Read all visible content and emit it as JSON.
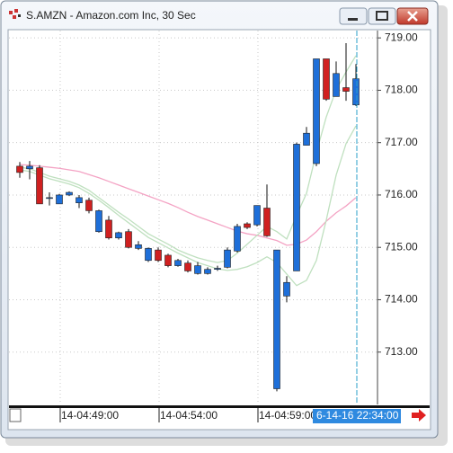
{
  "chart_data": {
    "type": "candlestick",
    "title": "S.AMZN - Amazon.com Inc, 30 Sec",
    "categories": [
      null,
      null,
      null,
      null,
      "14-04:49:00",
      null,
      null,
      null,
      null,
      null,
      null,
      null,
      null,
      null,
      "14-04:54:00",
      null,
      null,
      null,
      null,
      null,
      null,
      null,
      null,
      null,
      "14-04:59:00",
      null,
      null,
      null,
      null,
      null,
      null,
      null,
      null,
      null,
      null
    ],
    "open": [
      716.55,
      716.5,
      716.52,
      715.95,
      715.83,
      716.0,
      715.85,
      715.9,
      715.3,
      715.52,
      715.18,
      715.3,
      714.98,
      714.75,
      714.95,
      714.85,
      714.65,
      714.7,
      714.5,
      714.5,
      714.58,
      714.62,
      714.93,
      715.45,
      715.43,
      715.75,
      712.3,
      714.07,
      714.55,
      716.95,
      716.6,
      718.6,
      717.88,
      718.05,
      717.72
    ],
    "high": [
      716.63,
      716.65,
      716.57,
      716.05,
      716.02,
      716.07,
      716.0,
      715.95,
      715.72,
      715.6,
      715.3,
      715.35,
      715.12,
      715.0,
      715.0,
      714.88,
      714.78,
      714.75,
      714.72,
      714.62,
      714.65,
      715.0,
      715.45,
      715.48,
      715.8,
      716.2,
      714.95,
      714.45,
      717.0,
      717.3,
      718.6,
      718.6,
      718.55,
      718.9,
      718.5
    ],
    "low": [
      716.33,
      716.3,
      715.83,
      715.8,
      715.83,
      715.98,
      715.75,
      715.65,
      715.28,
      715.15,
      715.15,
      714.98,
      714.95,
      714.72,
      714.72,
      714.62,
      714.63,
      714.52,
      714.48,
      714.48,
      714.55,
      714.6,
      714.9,
      715.35,
      715.4,
      715.2,
      712.25,
      713.95,
      714.55,
      716.95,
      716.55,
      717.8,
      717.88,
      717.8,
      717.7
    ],
    "close": [
      716.43,
      716.55,
      715.83,
      715.95,
      716.0,
      716.05,
      715.95,
      715.7,
      715.7,
      715.18,
      715.28,
      715.0,
      715.05,
      714.98,
      714.75,
      714.65,
      714.75,
      714.55,
      714.65,
      714.58,
      714.6,
      714.95,
      715.4,
      715.38,
      715.8,
      715.22,
      714.95,
      714.33,
      716.97,
      717.18,
      718.6,
      717.83,
      718.32,
      717.98,
      718.22
    ],
    "up_color": "#1e6fd9",
    "down_color": "#d02020",
    "series": [
      {
        "color": "#f4a3c4",
        "values": [
          716.58,
          716.57,
          716.55,
          716.53,
          716.51,
          716.48,
          716.45,
          716.39,
          716.33,
          716.26,
          716.19,
          716.12,
          716.05,
          715.98,
          715.91,
          715.84,
          715.76,
          715.67,
          715.59,
          715.52,
          715.45,
          715.38,
          715.31,
          715.26,
          715.23,
          715.18,
          715.13,
          715.04,
          715.06,
          715.14,
          715.3,
          715.5,
          715.66,
          715.79,
          715.95
        ]
      },
      {
        "color": "#bfe0bf",
        "values": [
          716.53,
          716.5,
          716.43,
          716.36,
          716.31,
          716.26,
          716.19,
          716.09,
          715.95,
          715.81,
          715.67,
          715.54,
          715.4,
          715.26,
          715.16,
          715.06,
          714.95,
          714.87,
          714.8,
          714.75,
          714.71,
          714.75,
          714.89,
          715.06,
          715.23,
          715.4,
          715.3,
          715.16,
          715.61,
          716.03,
          716.81,
          717.49,
          718.01,
          718.35,
          718.66
        ]
      },
      {
        "color": "#bfe0bf",
        "values": [
          716.48,
          716.45,
          716.38,
          716.31,
          716.26,
          716.21,
          716.14,
          716.03,
          715.9,
          715.76,
          715.61,
          715.47,
          715.33,
          715.19,
          715.09,
          714.99,
          714.89,
          714.8,
          714.71,
          714.65,
          714.59,
          714.56,
          714.58,
          714.63,
          714.71,
          714.82,
          714.71,
          714.49,
          714.27,
          714.37,
          714.75,
          715.52,
          716.38,
          716.98,
          717.32
        ]
      }
    ],
    "ylim": [
      712.0,
      719.14
    ],
    "yticks": [
      {
        "value": 713,
        "label": "713.00"
      },
      {
        "value": 714,
        "label": "714.00"
      },
      {
        "value": 715,
        "label": "715.00"
      },
      {
        "value": 716,
        "label": "716.00"
      },
      {
        "value": 717,
        "label": "717.00"
      },
      {
        "value": 718,
        "label": "718.00"
      },
      {
        "value": 719,
        "label": "719.00"
      }
    ],
    "grid": true,
    "cursor_label": "6-14-16 22:34:00"
  }
}
